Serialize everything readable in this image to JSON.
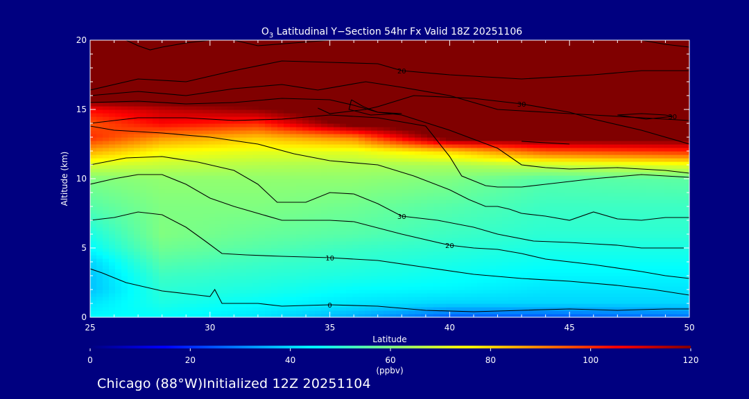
{
  "chart_data": {
    "type": "heatmap",
    "title_prefix": "O",
    "title_sub": "3",
    "title_rest": " Latitudinal Y−Section 54hr  Fx Valid 18Z 20251106",
    "xlabel": "Latitude",
    "ylabel": "Altitude (km)",
    "xlim": [
      25,
      50
    ],
    "ylim": [
      0,
      20
    ],
    "x_ticks": [
      25,
      30,
      35,
      40,
      45,
      50
    ],
    "y_ticks": [
      0,
      5,
      10,
      15,
      20
    ],
    "colorbar": {
      "min": 0,
      "max": 120,
      "ticks": [
        0,
        20,
        40,
        60,
        80,
        100,
        120
      ],
      "label": "(ppbv)",
      "colors": [
        "#000080",
        "#0000ff",
        "#0080ff",
        "#00ffff",
        "#80ff80",
        "#ffff00",
        "#ff8000",
        "#ff0000",
        "#800000"
      ]
    },
    "field_profiles": [
      {
        "lat": 25,
        "alt": [
          0,
          1,
          2,
          3,
          4,
          5,
          6,
          8,
          10,
          11,
          12,
          13,
          14,
          15,
          16,
          20
        ],
        "o3": [
          45,
          42,
          38,
          38,
          40,
          45,
          48,
          55,
          60,
          70,
          85,
          100,
          95,
          105,
          130,
          135
        ]
      },
      {
        "lat": 28,
        "alt": [
          0,
          1,
          2,
          3,
          4,
          5,
          6,
          8,
          10,
          11,
          12,
          13,
          14,
          15,
          16,
          20
        ],
        "o3": [
          45,
          48,
          50,
          52,
          55,
          58,
          60,
          60,
          62,
          68,
          75,
          88,
          105,
          112,
          130,
          135
        ]
      },
      {
        "lat": 32,
        "alt": [
          0,
          1,
          2,
          3,
          4,
          5,
          6,
          8,
          10,
          11,
          12,
          13,
          14,
          15,
          16,
          20
        ],
        "o3": [
          42,
          45,
          48,
          50,
          52,
          55,
          57,
          60,
          62,
          66,
          72,
          82,
          100,
          118,
          130,
          135
        ]
      },
      {
        "lat": 36,
        "alt": [
          0,
          1,
          2,
          3,
          4,
          5,
          6,
          8,
          10,
          11,
          12,
          13,
          14,
          15,
          16,
          20
        ],
        "o3": [
          35,
          42,
          45,
          48,
          50,
          52,
          55,
          58,
          62,
          65,
          72,
          90,
          125,
          130,
          130,
          135
        ]
      },
      {
        "lat": 40,
        "alt": [
          0,
          1,
          2,
          3,
          4,
          5,
          6,
          8,
          10,
          11,
          12,
          13,
          14,
          15,
          16,
          20
        ],
        "o3": [
          25,
          40,
          44,
          46,
          48,
          50,
          52,
          55,
          60,
          65,
          80,
          125,
          130,
          130,
          130,
          135
        ]
      },
      {
        "lat": 44,
        "alt": [
          0,
          1,
          2,
          3,
          4,
          5,
          6,
          8,
          10,
          11,
          12,
          13,
          14,
          15,
          16,
          20
        ],
        "o3": [
          25,
          40,
          42,
          44,
          46,
          48,
          50,
          52,
          55,
          68,
          95,
          125,
          130,
          130,
          130,
          135
        ]
      },
      {
        "lat": 50,
        "alt": [
          0,
          1,
          2,
          3,
          4,
          5,
          6,
          8,
          10,
          11,
          12,
          13,
          14,
          15,
          16,
          20
        ],
        "o3": [
          28,
          40,
          42,
          44,
          46,
          48,
          50,
          52,
          56,
          72,
          100,
          125,
          130,
          130,
          130,
          135
        ]
      }
    ],
    "contours": [
      {
        "label": "0",
        "points": [
          [
            25,
            3.5
          ],
          [
            25.5,
            3.2
          ],
          [
            26.5,
            2.5
          ],
          [
            28,
            1.9
          ],
          [
            29.5,
            1.6
          ],
          [
            30,
            1.5
          ],
          [
            30.2,
            2.0
          ],
          [
            30.5,
            1.0
          ],
          [
            32,
            1.0
          ],
          [
            33,
            0.8
          ],
          [
            35,
            0.9
          ],
          [
            37,
            0.8
          ],
          [
            39,
            0.5
          ],
          [
            41,
            0.4
          ],
          [
            43,
            0.5
          ],
          [
            45,
            0.6
          ],
          [
            47,
            0.5
          ],
          [
            49,
            0.6
          ],
          [
            50,
            0.6
          ]
        ]
      },
      {
        "label": "10",
        "points": [
          [
            25,
            7.0
          ],
          [
            26,
            7.2
          ],
          [
            27,
            7.6
          ],
          [
            28,
            7.4
          ],
          [
            29,
            6.5
          ],
          [
            29.8,
            5.5
          ],
          [
            30.5,
            4.6
          ],
          [
            31.5,
            4.5
          ],
          [
            33,
            4.4
          ],
          [
            35,
            4.3
          ],
          [
            37,
            4.1
          ],
          [
            39,
            3.6
          ],
          [
            41,
            3.1
          ],
          [
            43,
            2.8
          ],
          [
            45,
            2.6
          ],
          [
            47,
            2.3
          ],
          [
            48.5,
            2.0
          ],
          [
            50,
            1.6
          ]
        ]
      },
      {
        "label": "20",
        "points": [
          [
            25,
            9.6
          ],
          [
            26,
            10.0
          ],
          [
            27,
            10.3
          ],
          [
            28,
            10.3
          ],
          [
            29,
            9.6
          ],
          [
            30,
            8.6
          ],
          [
            31,
            8.0
          ],
          [
            33,
            7.0
          ],
          [
            35,
            7.0
          ],
          [
            36,
            6.9
          ],
          [
            38,
            6.0
          ],
          [
            40,
            5.2
          ],
          [
            41,
            5.0
          ],
          [
            42,
            4.9
          ],
          [
            43,
            4.6
          ],
          [
            44,
            4.2
          ],
          [
            46,
            3.8
          ],
          [
            48,
            3.3
          ],
          [
            49,
            3.0
          ],
          [
            50,
            2.8
          ]
        ]
      },
      {
        "label": "30",
        "points": [
          [
            25,
            11.0
          ],
          [
            26.5,
            11.5
          ],
          [
            28,
            11.6
          ],
          [
            29.5,
            11.2
          ],
          [
            31,
            10.6
          ],
          [
            32,
            9.6
          ],
          [
            32.8,
            8.3
          ],
          [
            34,
            8.3
          ],
          [
            35,
            9.0
          ],
          [
            36,
            8.9
          ],
          [
            37,
            8.2
          ],
          [
            38,
            7.3
          ],
          [
            39.5,
            7.0
          ],
          [
            41,
            6.5
          ],
          [
            42,
            6.0
          ],
          [
            43.5,
            5.5
          ],
          [
            45,
            5.4
          ],
          [
            46,
            5.3
          ],
          [
            47,
            5.2
          ],
          [
            48,
            5.0
          ],
          [
            50,
            5.0
          ]
        ]
      },
      {
        "label": "",
        "points": [
          [
            25,
            13.8
          ],
          [
            26,
            13.5
          ],
          [
            28,
            13.3
          ],
          [
            30,
            13.0
          ],
          [
            32,
            12.5
          ],
          [
            33.5,
            11.8
          ],
          [
            35,
            11.3
          ],
          [
            37,
            11.0
          ],
          [
            38.5,
            10.2
          ],
          [
            40,
            9.2
          ],
          [
            40.8,
            8.5
          ],
          [
            41.5,
            8.0
          ],
          [
            42,
            8.0
          ],
          [
            42.5,
            7.8
          ],
          [
            43,
            7.5
          ],
          [
            44,
            7.3
          ],
          [
            45,
            7.0
          ],
          [
            46,
            7.6
          ],
          [
            47,
            7.1
          ],
          [
            48,
            7.0
          ],
          [
            49,
            7.2
          ],
          [
            50,
            7.2
          ]
        ]
      },
      {
        "label": "",
        "points": [
          [
            25,
            14.0
          ],
          [
            27,
            14.4
          ],
          [
            29,
            14.4
          ],
          [
            31,
            14.2
          ],
          [
            33,
            14.3
          ],
          [
            35,
            14.6
          ],
          [
            37,
            14.4
          ],
          [
            39,
            13.8
          ],
          [
            40,
            11.6
          ],
          [
            40.5,
            10.2
          ],
          [
            41.5,
            9.5
          ],
          [
            42,
            9.4
          ],
          [
            43,
            9.4
          ],
          [
            44,
            9.6
          ],
          [
            46,
            10.0
          ],
          [
            48,
            10.3
          ],
          [
            49,
            10.2
          ],
          [
            50,
            10.1
          ]
        ]
      },
      {
        "label": "",
        "points": [
          [
            25,
            15.5
          ],
          [
            27,
            15.6
          ],
          [
            29,
            15.4
          ],
          [
            31,
            15.5
          ],
          [
            33,
            15.8
          ],
          [
            35,
            15.7
          ],
          [
            36,
            15.3
          ],
          [
            37,
            14.8
          ],
          [
            38,
            14.6
          ],
          [
            40,
            13.5
          ],
          [
            42,
            12.2
          ],
          [
            43,
            11.0
          ],
          [
            44,
            10.8
          ],
          [
            45,
            10.7
          ],
          [
            47,
            10.8
          ],
          [
            49,
            10.6
          ],
          [
            50,
            10.4
          ]
        ]
      },
      {
        "label": "",
        "points": [
          [
            25,
            16.0
          ],
          [
            27,
            16.3
          ],
          [
            29,
            16.0
          ],
          [
            31,
            16.5
          ],
          [
            33,
            16.8
          ],
          [
            34.5,
            16.4
          ],
          [
            36.5,
            17.0
          ],
          [
            38,
            16.6
          ],
          [
            40,
            16.0
          ],
          [
            42,
            15.0
          ],
          [
            44,
            14.8
          ],
          [
            46,
            14.6
          ],
          [
            48,
            14.4
          ],
          [
            50,
            14.2
          ]
        ]
      },
      {
        "label": "20",
        "points": [
          [
            25,
            16.4
          ],
          [
            27,
            17.2
          ],
          [
            29,
            17.0
          ],
          [
            31,
            17.8
          ],
          [
            33,
            18.5
          ],
          [
            35,
            18.4
          ],
          [
            37,
            18.3
          ],
          [
            38,
            17.8
          ],
          [
            40,
            17.5
          ],
          [
            43,
            17.2
          ],
          [
            46,
            17.5
          ],
          [
            48,
            17.8
          ],
          [
            50,
            17.8
          ]
        ]
      },
      {
        "label": "30",
        "points": [
          [
            34.5,
            15.1
          ],
          [
            35,
            14.7
          ],
          [
            36.5,
            15.0
          ],
          [
            37,
            15.2
          ],
          [
            38.5,
            16.0
          ],
          [
            41,
            15.8
          ],
          [
            43,
            15.4
          ],
          [
            45,
            14.8
          ],
          [
            46,
            14.3
          ],
          [
            48,
            13.5
          ],
          [
            50,
            12.5
          ]
        ]
      },
      {
        "label": "",
        "points": [
          [
            35.9,
            15.7
          ],
          [
            36.4,
            15.2
          ],
          [
            37,
            14.8
          ],
          [
            38,
            14.7
          ],
          [
            36.7,
            14.6
          ],
          [
            35.8,
            15.0
          ],
          [
            35.9,
            15.7
          ]
        ]
      },
      {
        "label": "30",
        "points": [
          [
            47,
            14.6
          ],
          [
            48,
            14.7
          ],
          [
            49,
            14.6
          ],
          [
            49.3,
            14.5
          ],
          [
            48.2,
            14.3
          ],
          [
            47,
            14.6
          ]
        ]
      },
      {
        "label": "",
        "points": [
          [
            43,
            12.7
          ],
          [
            44,
            12.6
          ],
          [
            45,
            12.5
          ]
        ]
      },
      {
        "label": "",
        "points": [
          [
            26.5,
            20.0
          ],
          [
            27,
            19.6
          ],
          [
            27.5,
            19.3
          ],
          [
            28,
            19.5
          ],
          [
            29,
            19.8
          ],
          [
            30,
            20.0
          ]
        ]
      },
      {
        "label": "",
        "points": [
          [
            31,
            20.0
          ],
          [
            32,
            19.6
          ],
          [
            33.5,
            19.8
          ],
          [
            35,
            20.0
          ]
        ]
      },
      {
        "label": "",
        "points": [
          [
            48,
            20.0
          ],
          [
            49,
            19.7
          ],
          [
            50,
            19.5
          ]
        ]
      }
    ]
  },
  "footer": {
    "text": "Chicago (88°W)Initialized 12Z 20251104"
  }
}
